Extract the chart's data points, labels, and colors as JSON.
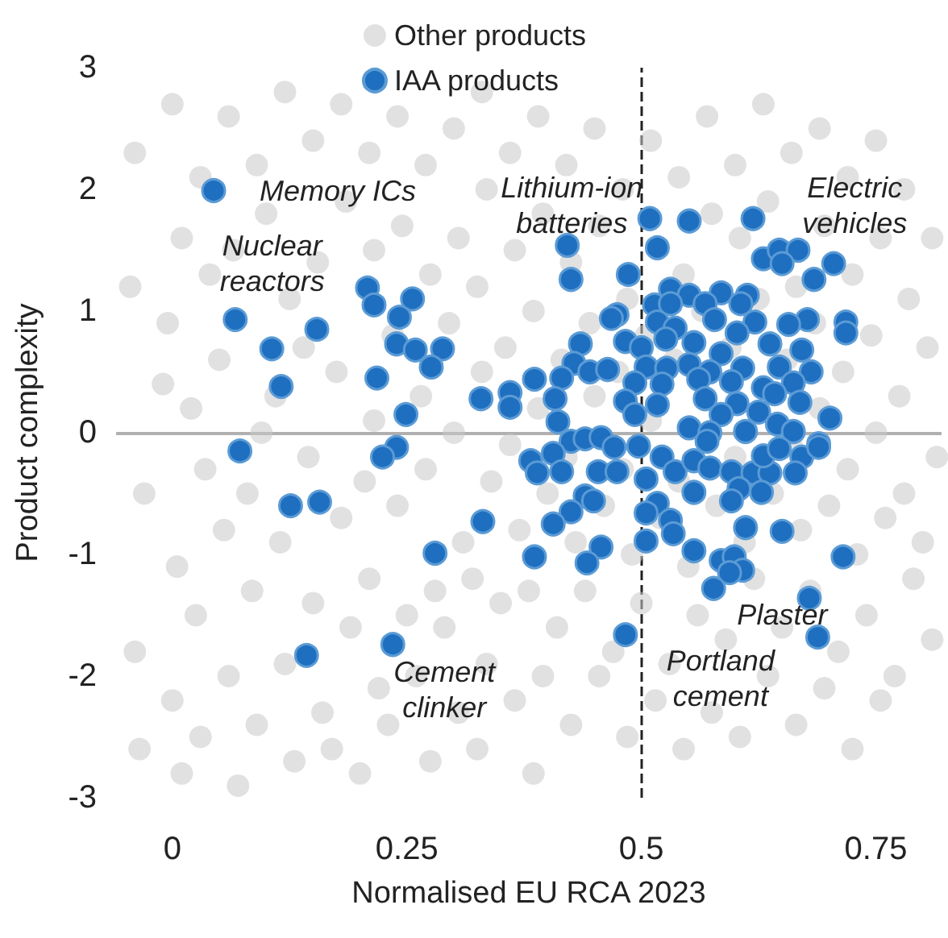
{
  "chart_data": {
    "type": "scatter",
    "xlabel": "Normalised EU RCA 2023",
    "ylabel": "Product complexity",
    "xlim": [
      -0.06,
      0.82
    ],
    "xticks": [
      0,
      0.25,
      0.5,
      0.75
    ],
    "ylim": [
      -3,
      3
    ],
    "yticks": [
      -3,
      -2,
      -1,
      0,
      1,
      2,
      3
    ],
    "grid": false,
    "legend": "top",
    "marker": "circle",
    "ref_lines": [
      {
        "axis": "x",
        "value": 0.5,
        "color": "#222222",
        "line_style": "dashed"
      },
      {
        "axis": "y",
        "value": 0,
        "color": "#b0b0b0",
        "line_style": "solid"
      }
    ],
    "annotations": [
      {
        "text": "Memory ICs",
        "x": 0.044,
        "y": 1.99
      },
      {
        "text": "Nuclear\nreactors",
        "x": 0.067,
        "y": 0.93
      },
      {
        "text": "Lithium-ion\nbatteries",
        "x": 0.486,
        "y": 1.3
      },
      {
        "text": "Electric\nvehicles",
        "x": 0.705,
        "y": 1.39
      },
      {
        "text": "Cement\nclinker",
        "x": 0.235,
        "y": -1.74
      },
      {
        "text": "Portland\ncement",
        "x": 0.483,
        "y": -1.66
      },
      {
        "text": "Plaster",
        "x": 0.688,
        "y": -1.68
      }
    ],
    "series": [
      {
        "name": "Other products",
        "color": "#c8c8c8",
        "x": [
          -0.04,
          -0.03,
          -0.04,
          -0.035,
          -0.045,
          0.0,
          0.01,
          -0.01,
          0.005,
          0.0,
          0.01,
          -0.005,
          0.03,
          0.035,
          0.025,
          0.03,
          0.04,
          0.02,
          0.06,
          0.065,
          0.055,
          0.06,
          0.07,
          0.05,
          0.09,
          0.095,
          0.085,
          0.09,
          0.1,
          0.08,
          0.12,
          0.125,
          0.115,
          0.12,
          0.13,
          0.11,
          0.15,
          0.155,
          0.145,
          0.15,
          0.16,
          0.14,
          0.18,
          0.185,
          0.175,
          0.18,
          0.19,
          0.17,
          0.21,
          0.215,
          0.205,
          0.21,
          0.22,
          0.2,
          0.215,
          0.24,
          0.245,
          0.235,
          0.24,
          0.25,
          0.23,
          0.27,
          0.275,
          0.265,
          0.27,
          0.28,
          0.26,
          0.275,
          0.3,
          0.305,
          0.295,
          0.3,
          0.31,
          0.29,
          0.305,
          0.33,
          0.335,
          0.325,
          0.33,
          0.34,
          0.32,
          0.335,
          0.325,
          0.36,
          0.365,
          0.355,
          0.36,
          0.37,
          0.35,
          0.365,
          0.39,
          0.395,
          0.385,
          0.39,
          0.4,
          0.38,
          0.395,
          0.385,
          0.42,
          0.425,
          0.415,
          0.42,
          0.43,
          0.41,
          0.425,
          0.45,
          0.455,
          0.445,
          0.45,
          0.46,
          0.44,
          0.455,
          0.48,
          0.485,
          0.475,
          0.48,
          0.49,
          0.47,
          0.485,
          0.51,
          0.505,
          0.51,
          0.52,
          0.5,
          0.515,
          0.54,
          0.545,
          0.535,
          0.54,
          0.55,
          0.53,
          0.545,
          0.57,
          0.575,
          0.565,
          0.58,
          0.56,
          0.575,
          0.6,
          0.605,
          0.595,
          0.6,
          0.61,
          0.59,
          0.605,
          0.63,
          0.635,
          0.625,
          0.64,
          0.62,
          0.635,
          0.66,
          0.665,
          0.655,
          0.66,
          0.67,
          0.65,
          0.665,
          0.69,
          0.695,
          0.685,
          0.69,
          0.7,
          0.68,
          0.695,
          0.72,
          0.725,
          0.715,
          0.72,
          0.73,
          0.71,
          0.725,
          0.75,
          0.755,
          0.745,
          0.75,
          0.76,
          0.74,
          0.755,
          0.78,
          0.785,
          0.775,
          0.78,
          0.79,
          0.77,
          0.81,
          0.805,
          0.815,
          0.8,
          0.81
        ],
        "values": [
          2.3,
          -0.5,
          -1.8,
          -2.6,
          1.2,
          2.7,
          1.6,
          0.4,
          -1.1,
          -2.2,
          -2.8,
          0.9,
          2.1,
          -0.3,
          -1.5,
          -2.5,
          1.3,
          0.2,
          2.6,
          1.5,
          -0.8,
          -2.0,
          -2.9,
          0.6,
          2.2,
          0.0,
          -1.3,
          -2.4,
          1.8,
          -0.5,
          2.8,
          1.1,
          -0.9,
          -1.9,
          -2.7,
          0.3,
          2.4,
          1.4,
          -0.2,
          -1.4,
          -2.3,
          0.7,
          2.7,
          1.9,
          0.5,
          -0.7,
          -1.6,
          -2.6,
          2.3,
          1.5,
          -0.4,
          -1.2,
          -2.1,
          -2.8,
          0.1,
          2.6,
          1.7,
          0.8,
          -0.6,
          -1.5,
          -2.4,
          2.2,
          1.3,
          0.3,
          -0.3,
          -1.3,
          -2.0,
          -2.7,
          2.5,
          1.6,
          0.9,
          0.0,
          -0.9,
          -1.6,
          -2.3,
          2.8,
          2.0,
          1.2,
          0.5,
          -0.4,
          -1.2,
          -1.9,
          -2.6,
          2.3,
          1.5,
          0.7,
          -0.1,
          -0.8,
          -1.4,
          -2.2,
          2.6,
          1.8,
          1.0,
          0.2,
          -0.5,
          -1.3,
          -2.0,
          -2.8,
          2.2,
          1.4,
          0.6,
          -0.2,
          -0.9,
          -1.6,
          -2.4,
          2.5,
          1.7,
          0.9,
          0.3,
          -0.6,
          -1.3,
          -2.0,
          2.0,
          1.1,
          0.5,
          -0.3,
          -1.0,
          -1.8,
          -2.5,
          2.4,
          0.8,
          0.1,
          -0.7,
          -1.4,
          -2.2,
          2.1,
          1.3,
          0.6,
          -0.4,
          -1.1,
          -1.9,
          -2.6,
          2.6,
          1.8,
          1.0,
          -0.6,
          -1.5,
          -2.3,
          2.2,
          1.6,
          0.7,
          -0.2,
          -0.9,
          -1.7,
          -2.5,
          2.7,
          1.9,
          1.1,
          -0.5,
          -1.2,
          -2.0,
          2.3,
          1.2,
          0.6,
          -0.1,
          -0.8,
          -1.6,
          -2.4,
          2.5,
          1.7,
          0.9,
          0.2,
          -0.6,
          -1.3,
          -2.1,
          2.1,
          1.3,
          0.5,
          -0.3,
          -1.0,
          -1.8,
          -2.6,
          2.4,
          1.6,
          0.8,
          0.0,
          -0.7,
          -1.5,
          -2.2,
          2.0,
          1.1,
          0.3,
          -0.5,
          -1.2,
          -2.0,
          1.6,
          0.7,
          -0.2,
          -0.9,
          -1.7
        ]
      },
      {
        "name": "IAA products",
        "color": "#1f6fc0",
        "x": [
          0.044,
          0.067,
          0.106,
          0.116,
          0.154,
          0.208,
          0.215,
          0.256,
          0.242,
          0.239,
          0.259,
          0.288,
          0.276,
          0.218,
          0.249,
          0.072,
          0.239,
          0.224,
          0.126,
          0.157,
          0.28,
          0.235,
          0.143,
          0.329,
          0.331,
          0.509,
          0.551,
          0.619,
          0.517,
          0.421,
          0.425,
          0.486,
          0.63,
          0.647,
          0.667,
          0.65,
          0.705,
          0.684,
          0.718,
          0.718,
          0.677,
          0.657,
          0.531,
          0.551,
          0.585,
          0.613,
          0.568,
          0.606,
          0.514,
          0.531,
          0.474,
          0.468,
          0.517,
          0.578,
          0.621,
          0.536,
          0.602,
          0.483,
          0.435,
          0.5,
          0.526,
          0.556,
          0.585,
          0.637,
          0.671,
          0.428,
          0.445,
          0.464,
          0.386,
          0.415,
          0.505,
          0.527,
          0.551,
          0.573,
          0.608,
          0.647,
          0.681,
          0.493,
          0.522,
          0.561,
          0.596,
          0.63,
          0.662,
          0.36,
          0.36,
          0.408,
          0.483,
          0.517,
          0.568,
          0.602,
          0.642,
          0.669,
          0.493,
          0.411,
          0.585,
          0.625,
          0.701,
          0.425,
          0.44,
          0.457,
          0.551,
          0.573,
          0.611,
          0.645,
          0.662,
          0.689,
          0.382,
          0.389,
          0.406,
          0.471,
          0.415,
          0.454,
          0.474,
          0.497,
          0.505,
          0.522,
          0.536,
          0.556,
          0.57,
          0.573,
          0.596,
          0.619,
          0.637,
          0.63,
          0.647,
          0.671,
          0.689,
          0.664,
          0.556,
          0.604,
          0.628,
          0.596,
          0.44,
          0.449,
          0.425,
          0.406,
          0.517,
          0.505,
          0.531,
          0.534,
          0.505,
          0.457,
          0.442,
          0.386,
          0.556,
          0.585,
          0.599,
          0.608,
          0.594,
          0.611,
          0.65,
          0.715,
          0.577,
          0.679,
          0.688,
          0.483
        ],
        "values": [
          1.99,
          0.93,
          0.69,
          0.38,
          0.85,
          1.19,
          1.05,
          1.1,
          0.95,
          0.73,
          0.68,
          0.69,
          0.54,
          0.45,
          0.15,
          -0.15,
          -0.12,
          -0.2,
          -0.6,
          -0.57,
          -0.99,
          -1.74,
          -1.83,
          0.28,
          -0.73,
          1.76,
          1.74,
          1.76,
          1.52,
          1.54,
          1.26,
          1.3,
          1.43,
          1.5,
          1.5,
          1.39,
          1.39,
          1.26,
          0.91,
          0.82,
          0.93,
          0.89,
          1.18,
          1.13,
          1.15,
          1.13,
          1.06,
          1.06,
          1.05,
          1.06,
          0.97,
          0.94,
          0.91,
          0.93,
          0.91,
          0.86,
          0.82,
          0.75,
          0.73,
          0.7,
          0.77,
          0.74,
          0.65,
          0.73,
          0.68,
          0.57,
          0.5,
          0.52,
          0.44,
          0.45,
          0.54,
          0.53,
          0.56,
          0.5,
          0.53,
          0.54,
          0.5,
          0.41,
          0.4,
          0.44,
          0.42,
          0.37,
          0.41,
          0.33,
          0.21,
          0.28,
          0.26,
          0.23,
          0.28,
          0.24,
          0.32,
          0.25,
          0.15,
          0.09,
          0.15,
          0.17,
          0.12,
          -0.07,
          -0.05,
          -0.04,
          0.04,
          0.0,
          0.01,
          0.07,
          0.01,
          -0.09,
          -0.23,
          -0.33,
          -0.17,
          -0.12,
          -0.32,
          -0.32,
          -0.32,
          -0.11,
          -0.38,
          -0.2,
          -0.32,
          -0.23,
          -0.07,
          -0.29,
          -0.32,
          -0.33,
          -0.33,
          -0.19,
          -0.13,
          -0.2,
          -0.12,
          -0.33,
          -0.49,
          -0.46,
          -0.49,
          -0.56,
          -0.52,
          -0.56,
          -0.65,
          -0.75,
          -0.58,
          -0.66,
          -0.72,
          -0.83,
          -0.89,
          -0.94,
          -1.07,
          -1.02,
          -0.97,
          -1.05,
          -1.02,
          -1.13,
          -1.15,
          -0.78,
          -0.81,
          -1.02,
          -1.28,
          -1.36,
          -1.68,
          -1.66
        ]
      }
    ]
  }
}
